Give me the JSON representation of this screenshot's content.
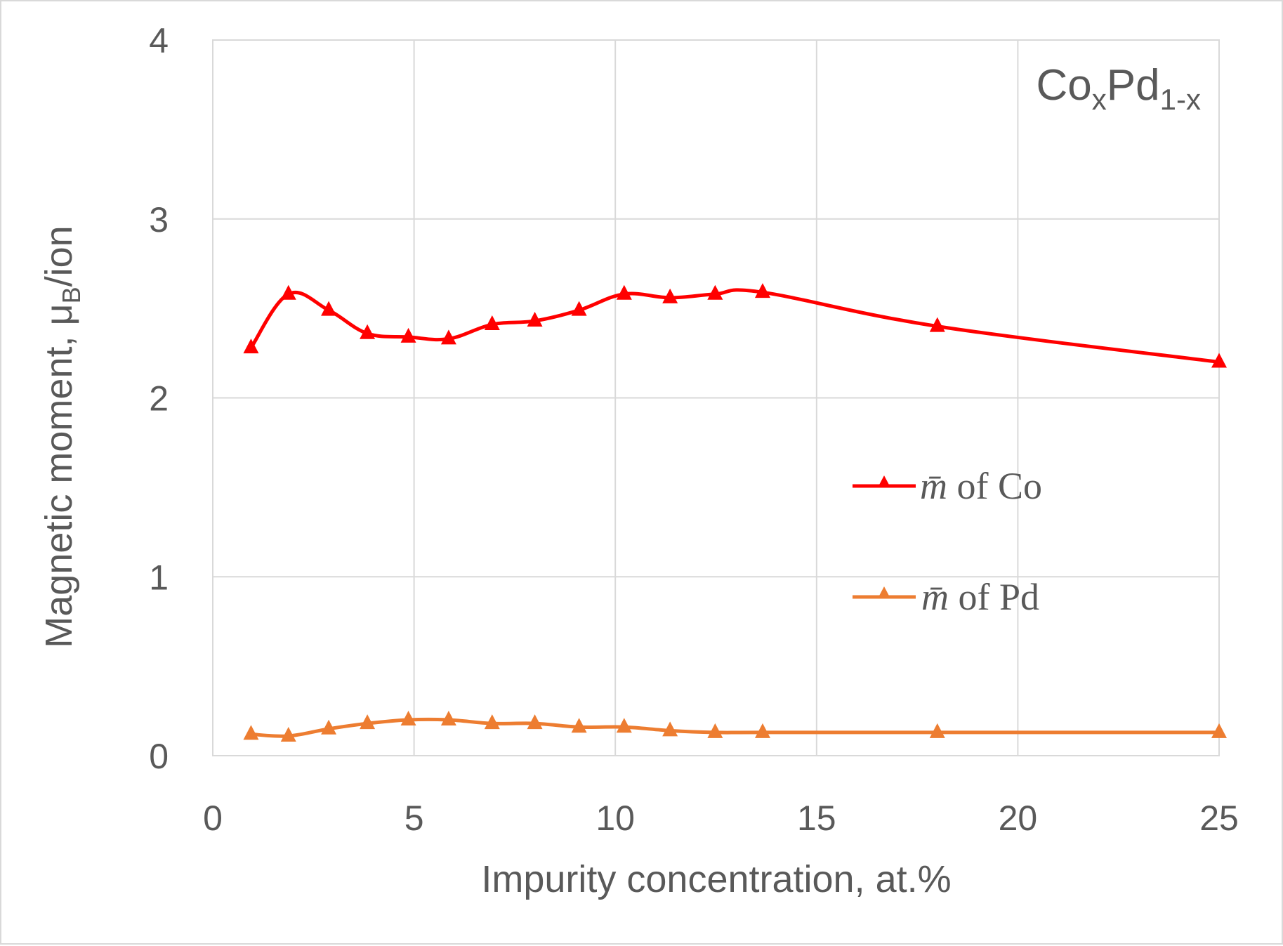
{
  "chart_data": {
    "type": "line",
    "title": "",
    "annotation": {
      "base": [
        "Co",
        "Pd"
      ],
      "subscripts": [
        "x",
        "1-x"
      ]
    },
    "xlabel": "Impurity concentration, at.%",
    "ylabel": {
      "prefix": "Magnetic moment, μ",
      "subscript": "B",
      "suffix": "/ion"
    },
    "xlim": [
      0,
      25
    ],
    "ylim": [
      0,
      4
    ],
    "xticks": [
      0,
      5,
      10,
      15,
      20,
      25
    ],
    "yticks": [
      0,
      1,
      2,
      3,
      4
    ],
    "grid": true,
    "legend_position": "center-right",
    "series": [
      {
        "name": "m̄ of Co",
        "legend": {
          "symbol": "m̄",
          "text": "of Co"
        },
        "color": "#ff0000",
        "marker": "triangle",
        "x": [
          0.95,
          1.88,
          2.88,
          3.84,
          4.86,
          5.86,
          6.94,
          8.0,
          9.1,
          10.22,
          11.36,
          12.48,
          13.66,
          18.0,
          25.0
        ],
        "y": [
          2.28,
          2.58,
          2.49,
          2.36,
          2.34,
          2.33,
          2.41,
          2.43,
          2.49,
          2.58,
          2.56,
          2.58,
          2.59,
          2.4,
          2.2
        ]
      },
      {
        "name": "m̄ of Pd",
        "legend": {
          "symbol": "m̄",
          "text": "of Pd"
        },
        "color": "#ed7d31",
        "marker": "triangle",
        "x": [
          0.95,
          1.88,
          2.88,
          3.84,
          4.86,
          5.86,
          6.94,
          8.0,
          9.1,
          10.22,
          11.36,
          12.48,
          13.66,
          18.0,
          25.0
        ],
        "y": [
          0.12,
          0.11,
          0.15,
          0.18,
          0.2,
          0.2,
          0.18,
          0.18,
          0.16,
          0.16,
          0.14,
          0.13,
          0.13,
          0.13,
          0.13
        ]
      }
    ]
  }
}
